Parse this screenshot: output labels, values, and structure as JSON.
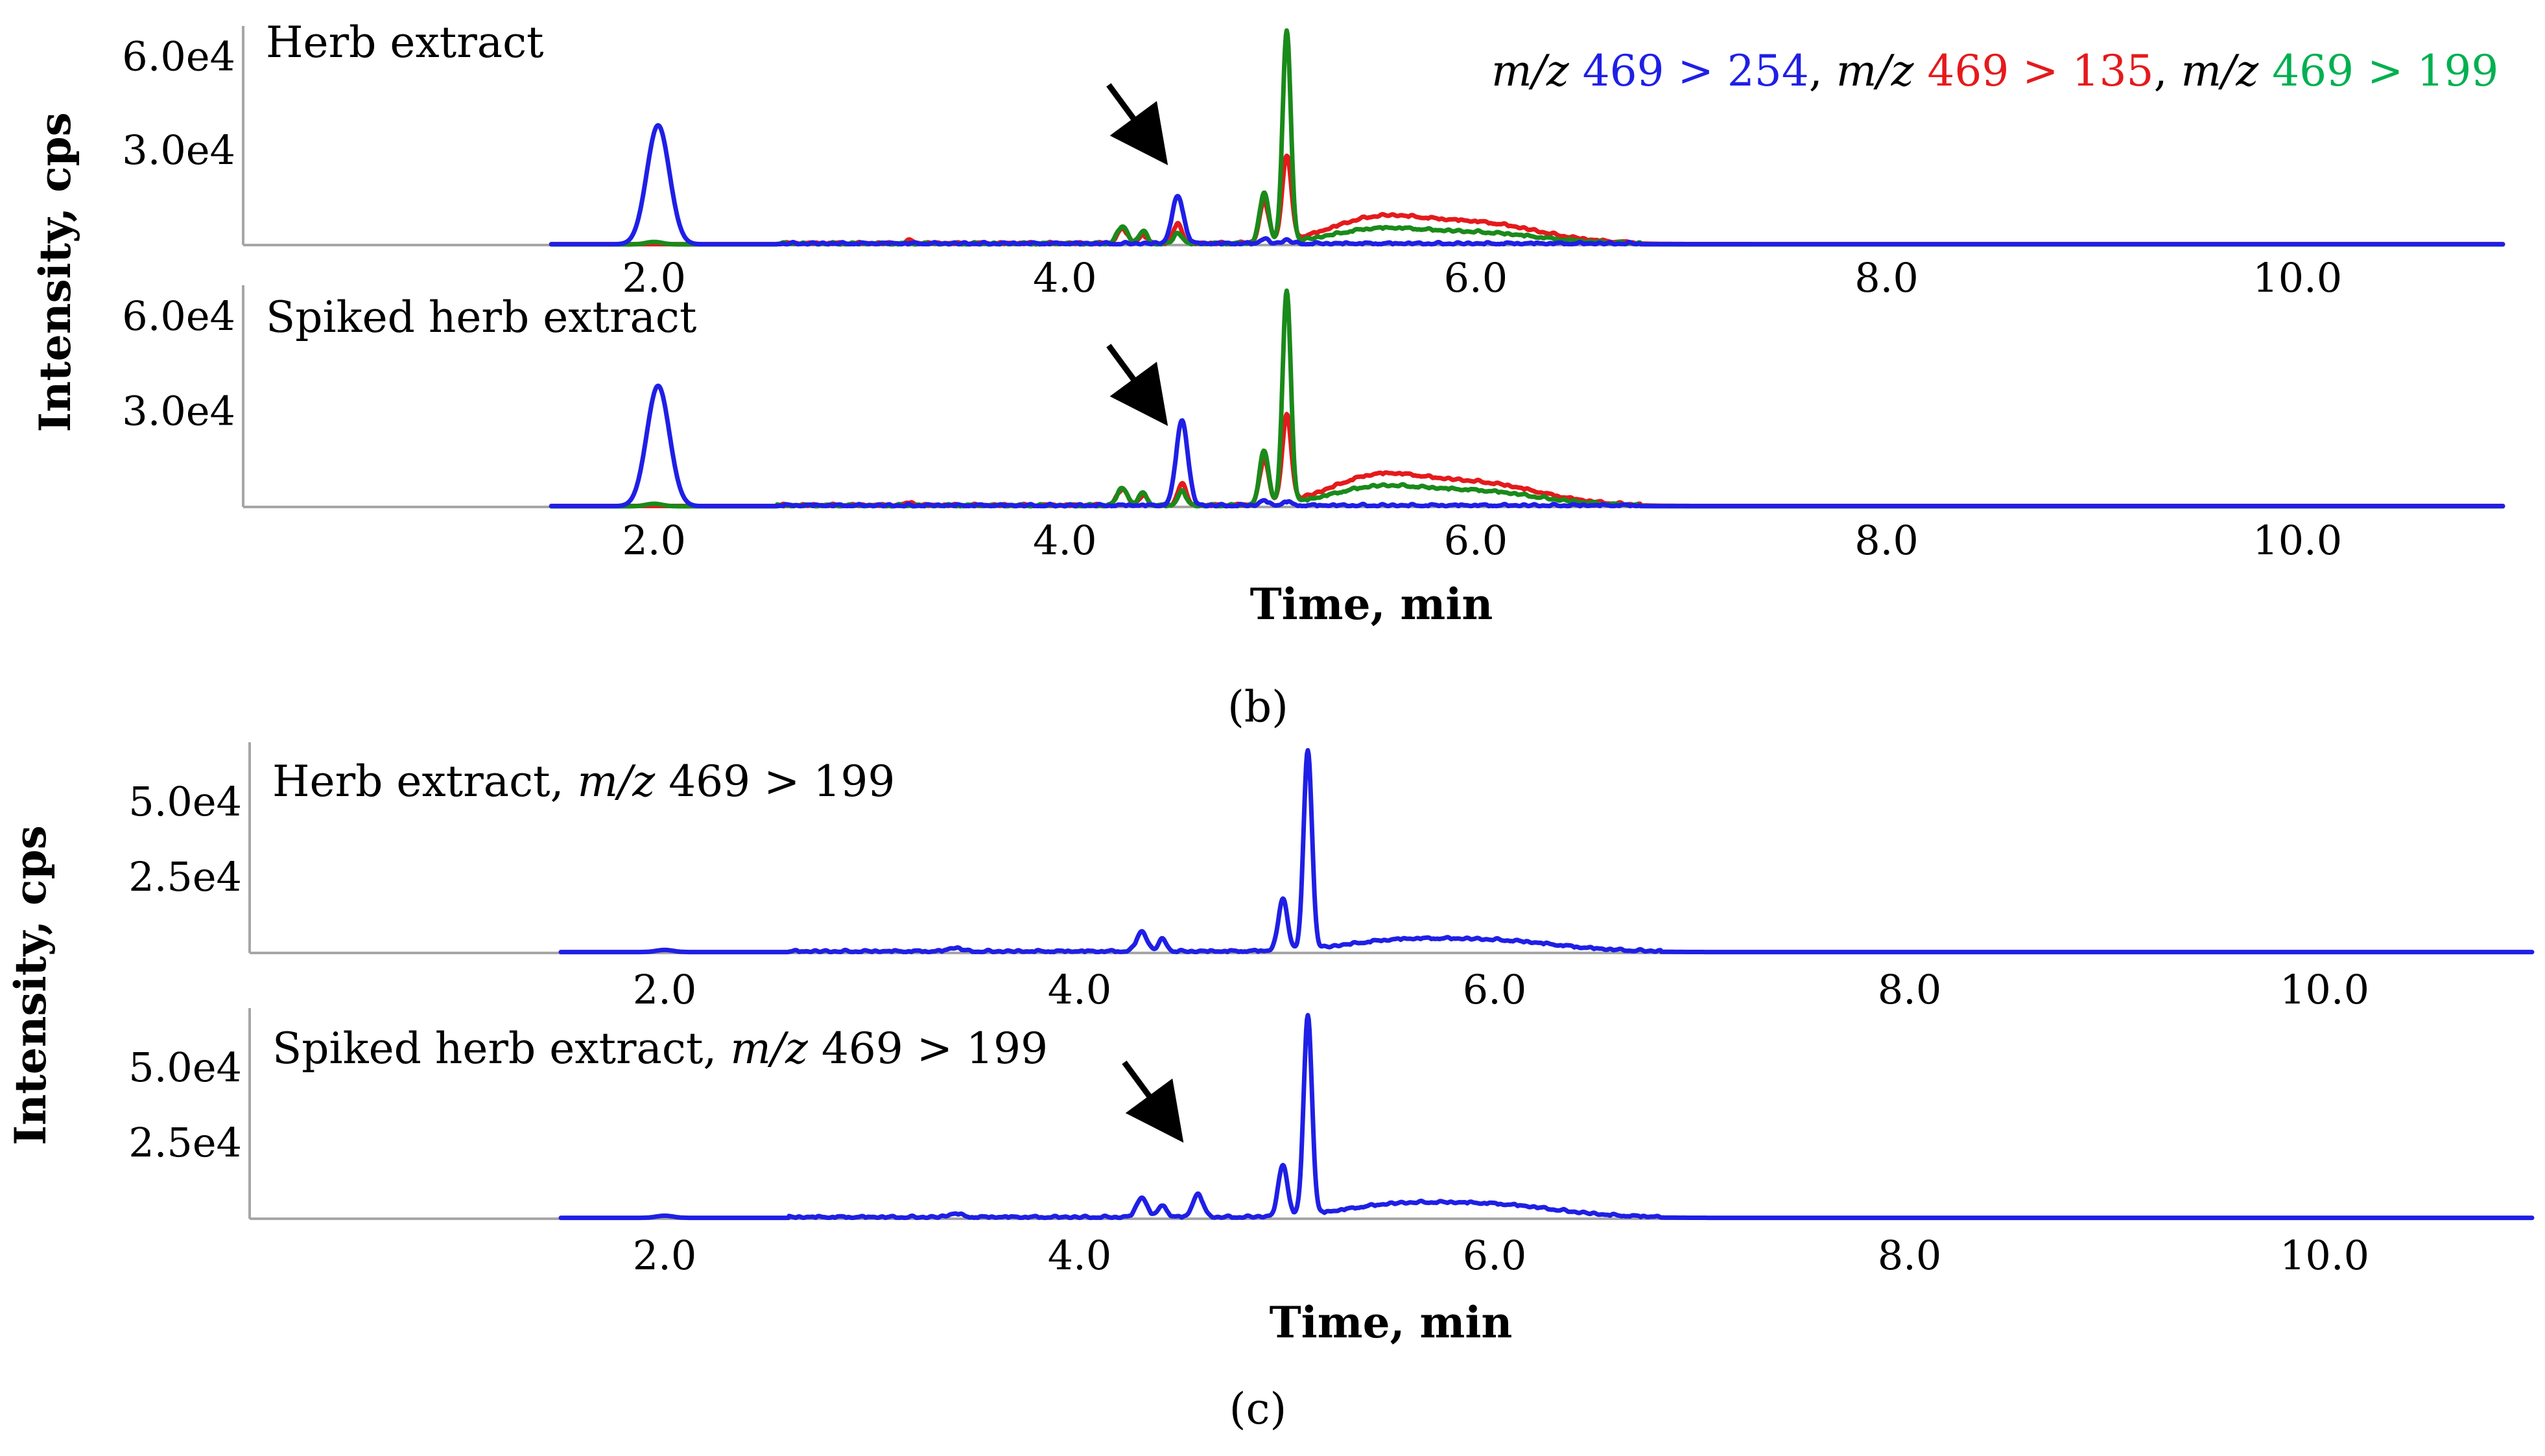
{
  "figure": {
    "panels": [
      {
        "id": "b",
        "caption": "(b)"
      },
      {
        "id": "c",
        "caption": "(c)"
      }
    ]
  },
  "colors": {
    "ion_254": "#1f1fe6",
    "ion_135": "#e41a1c",
    "ion_199": "#1a8a1a",
    "ion_199_text": "#00b050",
    "axis": "#a6a6a6",
    "text": "#000000"
  },
  "legend": {
    "prefix": "m/z",
    "items": [
      {
        "text": "469 > 254",
        "color_key": "ion_254"
      },
      {
        "text": "469 > 135",
        "color_key": "ion_135"
      },
      {
        "text": "469 > 199",
        "color_key": "ion_199_text"
      }
    ]
  },
  "chart_data": [
    {
      "type": "line",
      "panel": "b",
      "title": "Herb extract",
      "xlabel": "Time, min",
      "ylabel": "Intensity, cps",
      "xlim": [
        0,
        11.0
      ],
      "ylim": [
        0,
        70000
      ],
      "x_ticks": [
        "2.0",
        "4.0",
        "6.0",
        "8.0",
        "10.0"
      ],
      "y_ticks": [
        "3.0e4",
        "6.0e4"
      ],
      "show_x_ticks": true,
      "arrow_at": 4.45,
      "series": [
        {
          "name": "m/z 469 > 254",
          "color": "#1f1fe6",
          "baseline": 250,
          "peaks": [
            [
              2.02,
              38000,
              0.055
            ],
            [
              4.55,
              15000,
              0.028
            ],
            [
              4.97,
              1500,
              0.02
            ],
            [
              5.08,
              1200,
              0.02
            ]
          ]
        },
        {
          "name": "m/z 469 > 135",
          "color": "#e41a1c",
          "baseline": 300,
          "peaks": [
            [
              3.25,
              900,
              0.02
            ],
            [
              4.28,
              4500,
              0.025
            ],
            [
              4.38,
              2500,
              0.02
            ],
            [
              4.55,
              6500,
              0.02
            ],
            [
              4.97,
              13000,
              0.022
            ],
            [
              5.08,
              27000,
              0.022
            ],
            [
              5.5,
              7000,
              0.22
            ],
            [
              6.0,
              6500,
              0.3
            ]
          ]
        },
        {
          "name": "m/z 469 > 199",
          "color": "#1a8a1a",
          "baseline": 200,
          "peaks": [
            [
              2.0,
              800,
              0.04
            ],
            [
              4.28,
              5500,
              0.025
            ],
            [
              4.38,
              4000,
              0.02
            ],
            [
              4.55,
              3500,
              0.02
            ],
            [
              4.97,
              16000,
              0.022
            ],
            [
              5.08,
              67000,
              0.02
            ],
            [
              5.5,
              4000,
              0.22
            ],
            [
              6.0,
              3500,
              0.3
            ]
          ]
        }
      ]
    },
    {
      "type": "line",
      "panel": "b",
      "title": "Spiked herb extract",
      "xlabel": "Time, min",
      "ylabel": "Intensity, cps",
      "xlim": [
        0,
        11.0
      ],
      "ylim": [
        0,
        70000
      ],
      "x_ticks": [
        "2.0",
        "4.0",
        "6.0",
        "8.0",
        "10.0"
      ],
      "y_ticks": [
        "3.0e4",
        "6.0e4"
      ],
      "show_x_ticks": true,
      "arrow_at": 4.45,
      "series": [
        {
          "name": "m/z 469 > 254",
          "color": "#1f1fe6",
          "baseline": 250,
          "peaks": [
            [
              2.02,
              38000,
              0.055
            ],
            [
              4.57,
              27000,
              0.028
            ],
            [
              4.97,
              1500,
              0.02
            ],
            [
              5.08,
              1200,
              0.02
            ]
          ]
        },
        {
          "name": "m/z 469 > 135",
          "color": "#e41a1c",
          "baseline": 300,
          "peaks": [
            [
              3.25,
              900,
              0.02
            ],
            [
              4.28,
              5000,
              0.025
            ],
            [
              4.38,
              3000,
              0.02
            ],
            [
              4.57,
              7000,
              0.02
            ],
            [
              4.97,
              14000,
              0.022
            ],
            [
              5.08,
              27000,
              0.022
            ],
            [
              5.5,
              8000,
              0.22
            ],
            [
              6.0,
              7000,
              0.3
            ]
          ]
        },
        {
          "name": "m/z 469 > 199",
          "color": "#1a8a1a",
          "baseline": 200,
          "peaks": [
            [
              2.0,
              800,
              0.04
            ],
            [
              4.28,
              5500,
              0.025
            ],
            [
              4.38,
              4000,
              0.02
            ],
            [
              4.57,
              4500,
              0.02
            ],
            [
              4.97,
              17000,
              0.022
            ],
            [
              5.08,
              67000,
              0.02
            ],
            [
              5.5,
              5000,
              0.22
            ],
            [
              6.0,
              4500,
              0.3
            ]
          ]
        }
      ]
    },
    {
      "type": "line",
      "panel": "c",
      "title_main": "Herb extract, ",
      "title_mz": "m/z",
      "title_tail": " 469 > 199",
      "xlabel": "Time, min",
      "ylabel": "Intensity, cps",
      "xlim": [
        0,
        11.0
      ],
      "ylim": [
        0,
        70000
      ],
      "x_ticks": [
        "2.0",
        "4.0",
        "6.0",
        "8.0",
        "10.0"
      ],
      "y_ticks": [
        "2.5e4",
        "5.0e4"
      ],
      "show_x_ticks": true,
      "arrow_at": null,
      "series": [
        {
          "name": "m/z 469 > 199",
          "color": "#1f1fe6",
          "baseline": 300,
          "peaks": [
            [
              2.0,
              700,
              0.04
            ],
            [
              3.4,
              1200,
              0.03
            ],
            [
              4.3,
              6500,
              0.025
            ],
            [
              4.4,
              4000,
              0.02
            ],
            [
              4.98,
              17000,
              0.022
            ],
            [
              5.1,
              66000,
              0.02
            ],
            [
              5.5,
              3000,
              0.25
            ],
            [
              6.0,
              3500,
              0.3
            ]
          ]
        }
      ]
    },
    {
      "type": "line",
      "panel": "c",
      "title_main": "Spiked herb extract, ",
      "title_mz": "m/z",
      "title_tail": " 469 > 199",
      "xlabel": "Time, min",
      "ylabel": "Intensity, cps",
      "xlim": [
        0,
        11.0
      ],
      "ylim": [
        0,
        70000
      ],
      "x_ticks": [
        "2.0",
        "4.0",
        "6.0",
        "8.0",
        "10.0"
      ],
      "y_ticks": [
        "2.5e4",
        "5.0e4"
      ],
      "show_x_ticks": true,
      "arrow_at": 4.45,
      "series": [
        {
          "name": "m/z 469 > 199",
          "color": "#1f1fe6",
          "baseline": 300,
          "peaks": [
            [
              2.0,
              700,
              0.04
            ],
            [
              3.4,
              1200,
              0.03
            ],
            [
              4.3,
              6500,
              0.025
            ],
            [
              4.4,
              4000,
              0.02
            ],
            [
              4.57,
              7500,
              0.025
            ],
            [
              4.98,
              17000,
              0.022
            ],
            [
              5.1,
              66000,
              0.02
            ],
            [
              5.5,
              3500,
              0.25
            ],
            [
              6.0,
              4000,
              0.3
            ]
          ]
        }
      ]
    }
  ]
}
